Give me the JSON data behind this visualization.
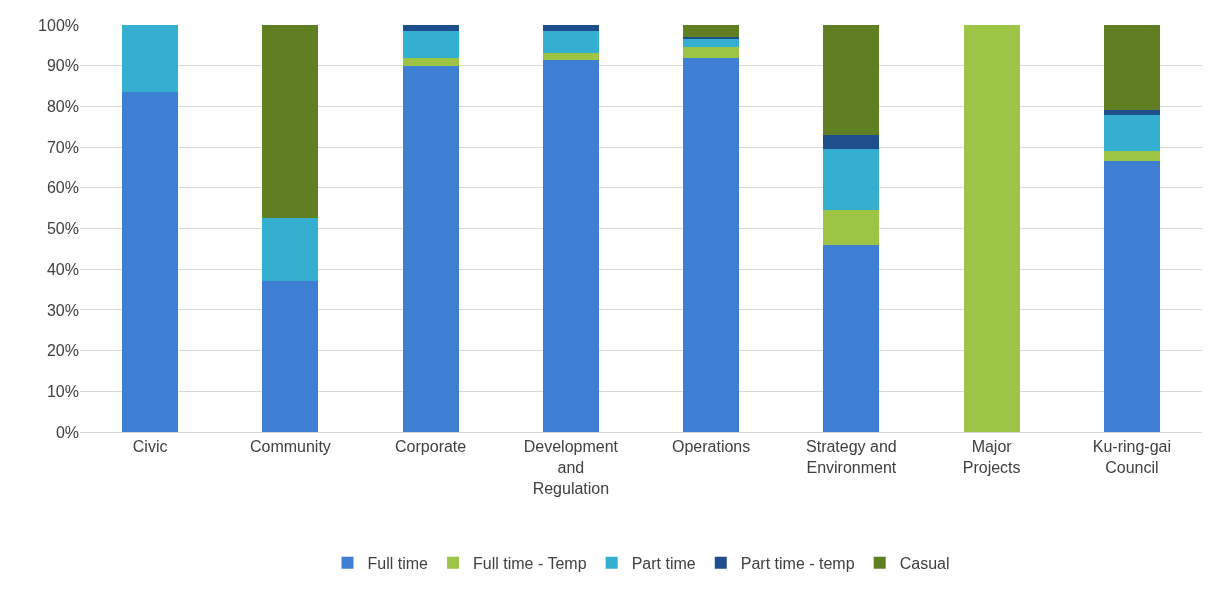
{
  "chart_data": {
    "type": "bar",
    "stacked": true,
    "categories": [
      "Civic",
      "Community",
      "Corporate",
      "Development and Regulation",
      "Operations",
      "Strategy and Environment",
      "Major Projects",
      "Ku-ring-gai Council"
    ],
    "series": [
      {
        "name": "Full time",
        "color": "#3f7fd3",
        "values": [
          83.5,
          37,
          90,
          91.5,
          92,
          46,
          0,
          66.5
        ]
      },
      {
        "name": "Full time - Temp",
        "color": "#9dc444",
        "values": [
          0,
          0,
          2,
          1.5,
          2.5,
          8.5,
          100,
          2.5
        ]
      },
      {
        "name": "Part time",
        "color": "#35afd0",
        "values": [
          16.5,
          15.5,
          6.5,
          5.5,
          2,
          15,
          0,
          9
        ]
      },
      {
        "name": "Part time - temp",
        "color": "#1f4e8c",
        "values": [
          0,
          0,
          1.5,
          1.5,
          0.5,
          3.5,
          0,
          1
        ]
      },
      {
        "name": "Casual",
        "color": "#5f7f22",
        "values": [
          0,
          47.5,
          0,
          0,
          3,
          27,
          0,
          21
        ]
      }
    ],
    "ylim": [
      0,
      100
    ],
    "yticks": [
      {
        "value": 0,
        "label": "0%"
      },
      {
        "value": 10,
        "label": "10%"
      },
      {
        "value": 20,
        "label": "20%"
      },
      {
        "value": 30,
        "label": "30%"
      },
      {
        "value": 40,
        "label": "40%"
      },
      {
        "value": 50,
        "label": "50%"
      },
      {
        "value": 60,
        "label": "60%"
      },
      {
        "value": 70,
        "label": "70%"
      },
      {
        "value": 80,
        "label": "80%"
      },
      {
        "value": 90,
        "label": "90%"
      },
      {
        "value": 100,
        "label": "100%"
      }
    ],
    "grid": "y",
    "legend": "bottom"
  }
}
